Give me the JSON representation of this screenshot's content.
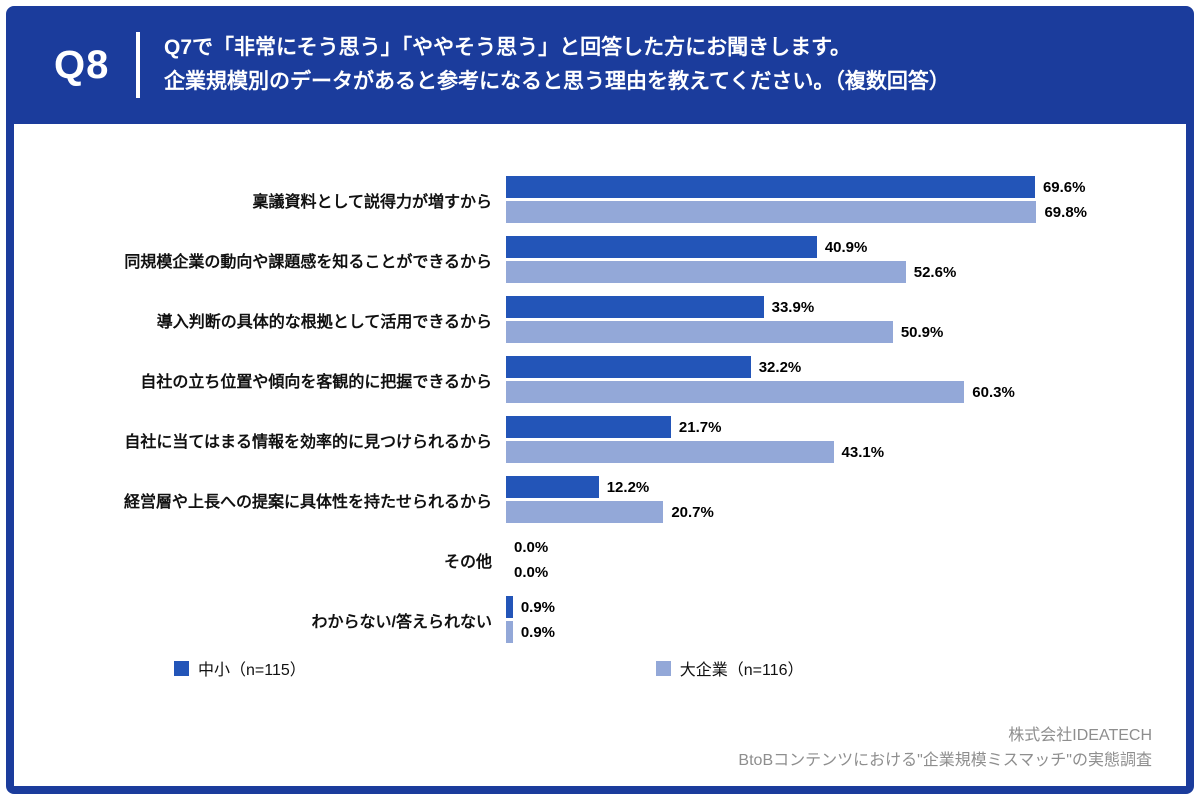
{
  "header": {
    "badge": "Q8",
    "line1": "Q7で「非常にそう思う」「ややそう思う」と回答した方にお聞きします。",
    "line2": "企業規模別のデータがあると参考になると思う理由を教えてください。（複数回答）"
  },
  "chart_data": {
    "type": "bar",
    "orientation": "horizontal",
    "categories": [
      "稟議資料として説得力が増すから",
      "同規模企業の動向や課題感を知ることができるから",
      "導入判断の具体的な根拠として活用できるから",
      "自社の立ち位置や傾向を客観的に把握できるから",
      "自社に当てはまる情報を効率的に見つけられるから",
      "経営層や上長への提案に具体性を持たせられるから",
      "その他",
      "わからない/答えられない"
    ],
    "series": [
      {
        "name": "中小（n=115）",
        "color": "#2355b8",
        "values": [
          69.6,
          40.9,
          33.9,
          32.2,
          21.7,
          12.2,
          0.0,
          0.9
        ]
      },
      {
        "name": "大企業（n=116）",
        "color": "#93a8d8",
        "values": [
          69.8,
          52.6,
          50.9,
          60.3,
          43.1,
          20.7,
          0.0,
          0.9
        ]
      }
    ],
    "value_suffix": "%",
    "xlim": [
      0,
      75
    ],
    "grid": false,
    "legend_position": "bottom"
  },
  "footer": {
    "company": "株式会社IDEATECH",
    "survey": "BtoBコンテンツにおける\"企業規模ミスマッチ\"の実態調査"
  },
  "colors": {
    "frame": "#1b3c9c",
    "series1": "#2355b8",
    "series2": "#93a8d8"
  }
}
